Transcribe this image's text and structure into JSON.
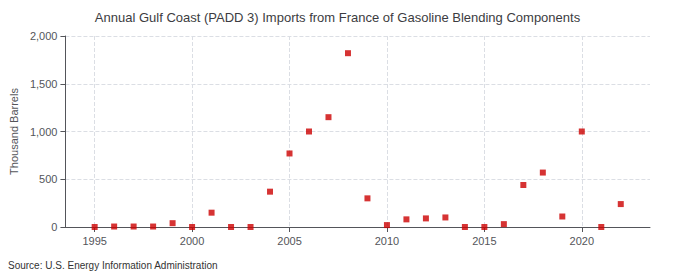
{
  "chart_data": {
    "type": "scatter",
    "title": "Annual Gulf Coast (PADD 3) Imports from France of Gasoline Blending Components",
    "ylabel": "Thousand Barrels",
    "source": "Source: U.S. Energy Information Administration",
    "color": "#cc0000",
    "marker": "square",
    "x": [
      1995,
      1996,
      1997,
      1998,
      1999,
      2000,
      2001,
      2002,
      2003,
      2004,
      2005,
      2006,
      2007,
      2008,
      2009,
      2010,
      2011,
      2012,
      2013,
      2014,
      2015,
      2016,
      2017,
      2018,
      2019,
      2020,
      2021,
      2022
    ],
    "values": [
      0,
      5,
      5,
      5,
      40,
      0,
      150,
      0,
      0,
      370,
      770,
      1000,
      1150,
      1820,
      300,
      20,
      80,
      90,
      100,
      0,
      0,
      30,
      440,
      570,
      110,
      1000,
      0,
      240
    ],
    "xlim": [
      1993.5,
      2023.5
    ],
    "xticks": [
      1995,
      2000,
      2005,
      2010,
      2015,
      2020
    ],
    "ylim": [
      0,
      2000
    ],
    "yticks": [
      0,
      500,
      {
        "value": 1000,
        "label": "1,000"
      },
      {
        "value": 1500,
        "label": "1,500"
      },
      {
        "value": 2000,
        "label": "2,000"
      }
    ],
    "grid": true
  }
}
